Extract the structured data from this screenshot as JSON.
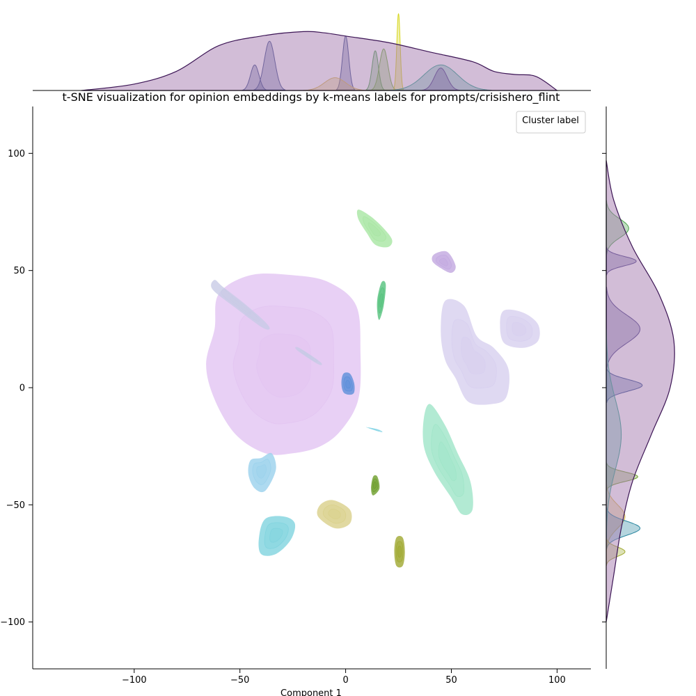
{
  "chart_data": {
    "type": "scatter",
    "subtype": "kde-density-jointplot",
    "title": "t-SNE visualization for opinion embeddings by k-means labels for prompts/crisishero_flint",
    "xlabel": "Component 1",
    "ylabel": "",
    "xlim": [
      -148,
      116
    ],
    "ylim": [
      -120,
      120
    ],
    "x_ticks": [
      "−100",
      "−50",
      "0",
      "50",
      "100"
    ],
    "y_ticks": [
      "100",
      "50",
      "0",
      "−50",
      "−100"
    ],
    "x_tick_values": [
      -100,
      -50,
      0,
      50,
      100
    ],
    "y_tick_values": [
      100,
      50,
      0,
      -50,
      -100
    ],
    "grid": false,
    "legend": {
      "title": "Cluster label",
      "placement": "top-right",
      "entries": []
    },
    "clusters": [
      {
        "color": "#e2c4f2",
        "outline": [
          [
            -60,
            40
          ],
          [
            -45,
            48
          ],
          [
            -25,
            48
          ],
          [
            -8,
            45
          ],
          [
            5,
            35
          ],
          [
            7,
            15
          ],
          [
            6,
            -5
          ],
          [
            -2,
            -18
          ],
          [
            -12,
            -25
          ],
          [
            -25,
            -28
          ],
          [
            -38,
            -28
          ],
          [
            -52,
            -20
          ],
          [
            -62,
            -5
          ],
          [
            -66,
            10
          ],
          [
            -62,
            25
          ]
        ]
      },
      {
        "color": "#c8cbe6",
        "outline": [
          [
            -62,
            46
          ],
          [
            -58,
            43
          ],
          [
            -48,
            36
          ],
          [
            -38,
            28
          ],
          [
            -36,
            25
          ],
          [
            -40,
            26
          ],
          [
            -52,
            34
          ],
          [
            -63,
            42
          ]
        ]
      },
      {
        "color": "#c8cbe6",
        "outline": [
          [
            -22,
            17
          ],
          [
            -12,
            11
          ],
          [
            -13,
            10
          ],
          [
            -23,
            16
          ]
        ]
      },
      {
        "color": "#5b8fd9",
        "outline": [
          [
            -1,
            6
          ],
          [
            2,
            6
          ],
          [
            4,
            2
          ],
          [
            4,
            -2
          ],
          [
            2,
            -3
          ],
          [
            -1,
            -2
          ],
          [
            -2,
            2
          ]
        ]
      },
      {
        "color": "#a8e6a2",
        "outline": [
          [
            6,
            76
          ],
          [
            12,
            73
          ],
          [
            18,
            68
          ],
          [
            22,
            63
          ],
          [
            20,
            60
          ],
          [
            14,
            61
          ],
          [
            10,
            66
          ],
          [
            6,
            72
          ]
        ]
      },
      {
        "color": "#55c27d",
        "outline": [
          [
            17,
            45
          ],
          [
            19,
            44
          ],
          [
            18,
            35
          ],
          [
            16,
            29
          ],
          [
            15,
            32
          ],
          [
            15,
            38
          ]
        ]
      },
      {
        "color": "#c2a8e0",
        "outline": [
          [
            42,
            57
          ],
          [
            48,
            58
          ],
          [
            52,
            52
          ],
          [
            50,
            49
          ],
          [
            45,
            51
          ],
          [
            41,
            54
          ]
        ]
      },
      {
        "color": "#d7cfef",
        "outline": [
          [
            47,
            37
          ],
          [
            56,
            35
          ],
          [
            62,
            22
          ],
          [
            70,
            17
          ],
          [
            77,
            8
          ],
          [
            76,
            -4
          ],
          [
            69,
            -7
          ],
          [
            58,
            -6
          ],
          [
            52,
            4
          ],
          [
            47,
            12
          ],
          [
            45,
            24
          ]
        ]
      },
      {
        "color": "#d7cfef",
        "outline": [
          [
            75,
            33
          ],
          [
            84,
            32
          ],
          [
            91,
            27
          ],
          [
            91,
            20
          ],
          [
            84,
            17
          ],
          [
            75,
            19
          ],
          [
            73,
            27
          ]
        ]
      },
      {
        "color": "#9fe5c8",
        "outline": [
          [
            40,
            -7
          ],
          [
            47,
            -16
          ],
          [
            53,
            -28
          ],
          [
            59,
            -40
          ],
          [
            60,
            -52
          ],
          [
            55,
            -54
          ],
          [
            50,
            -47
          ],
          [
            42,
            -36
          ],
          [
            37,
            -25
          ],
          [
            37,
            -13
          ]
        ]
      },
      {
        "color": "#8fd8e8",
        "outline": [
          [
            10,
            -17
          ],
          [
            17,
            -19
          ],
          [
            16,
            -18
          ],
          [
            11,
            -17
          ]
        ]
      },
      {
        "color": "#9ad1ec",
        "outline": [
          [
            -45,
            -31
          ],
          [
            -40,
            -30
          ],
          [
            -35,
            -28
          ],
          [
            -33,
            -35
          ],
          [
            -38,
            -44
          ],
          [
            -43,
            -43
          ],
          [
            -46,
            -37
          ]
        ]
      },
      {
        "color": "#6d9e2a",
        "outline": [
          [
            13,
            -38
          ],
          [
            15,
            -38
          ],
          [
            16,
            -43
          ],
          [
            13,
            -46
          ],
          [
            12,
            -43
          ]
        ]
      },
      {
        "color": "#d9d08a",
        "outline": [
          [
            -12,
            -50
          ],
          [
            -6,
            -48
          ],
          [
            2,
            -52
          ],
          [
            2,
            -58
          ],
          [
            -5,
            -60
          ],
          [
            -13,
            -55
          ]
        ]
      },
      {
        "color": "#7fd3de",
        "outline": [
          [
            -38,
            -56
          ],
          [
            -29,
            -55
          ],
          [
            -24,
            -58
          ],
          [
            -26,
            -65
          ],
          [
            -33,
            -71
          ],
          [
            -40,
            -71
          ],
          [
            -41,
            -64
          ]
        ]
      },
      {
        "color": "#9fa82f",
        "outline": [
          [
            24,
            -64
          ],
          [
            27,
            -64
          ],
          [
            28,
            -70
          ],
          [
            27,
            -76
          ],
          [
            24,
            -76
          ],
          [
            23,
            -70
          ]
        ]
      }
    ],
    "top_marginal": {
      "outline_color": "#3b1454",
      "fill": "#a57bb0",
      "x": [
        -125,
        -100,
        -80,
        -60,
        -40,
        -20,
        -10,
        0,
        20,
        40,
        60,
        70,
        80,
        90,
        100
      ],
      "y": [
        0,
        0.1,
        0.3,
        0.7,
        0.85,
        0.92,
        0.9,
        0.85,
        0.75,
        0.6,
        0.45,
        0.3,
        0.25,
        0.22,
        0
      ]
    },
    "right_marginal": {
      "outline_color": "#3b1454",
      "fill": "#a57bb0",
      "y": [
        97,
        80,
        60,
        40,
        20,
        0,
        -20,
        -40,
        -60,
        -80,
        -100
      ],
      "x": [
        0,
        0.1,
        0.35,
        0.7,
        0.9,
        0.85,
        0.6,
        0.35,
        0.2,
        0.1,
        0
      ]
    }
  }
}
